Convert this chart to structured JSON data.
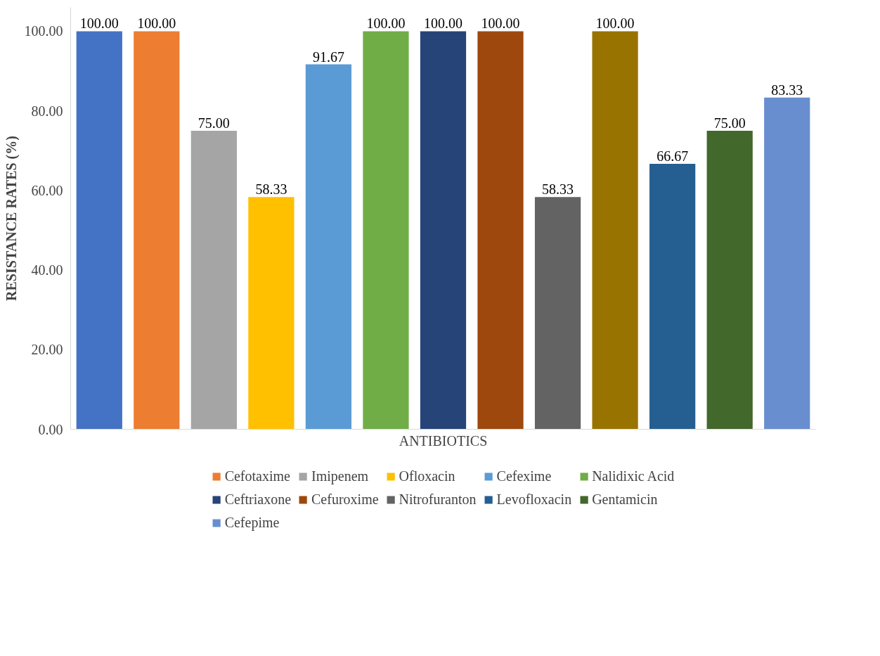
{
  "chart_data": {
    "type": "bar",
    "xlabel": "ANTIBIOTICS",
    "ylabel": "RESISTANCE RATES (%)",
    "categories": [
      null
    ],
    "series": [
      {
        "color": "#4472c4",
        "values": [
          100.0
        ],
        "value_labels": [
          "100.00"
        ]
      },
      {
        "name": "Cefotaxime",
        "color": "#ed7d31",
        "values": [
          100.0
        ],
        "value_labels": [
          "100.00"
        ]
      },
      {
        "name": "Imipenem",
        "color": "#a5a5a5",
        "values": [
          75.0
        ],
        "value_labels": [
          "75.00"
        ]
      },
      {
        "name": "Ofloxacin",
        "color": "#ffc000",
        "values": [
          58.33
        ],
        "value_labels": [
          "58.33"
        ]
      },
      {
        "name": "Cefexime",
        "color": "#5b9bd5",
        "values": [
          91.67
        ],
        "value_labels": [
          "91.67"
        ]
      },
      {
        "name": "Nalidixic Acid",
        "color": "#70ad47",
        "values": [
          100.0
        ],
        "value_labels": [
          "100.00"
        ]
      },
      {
        "name": "Ceftriaxone",
        "color": "#264478",
        "values": [
          100.0
        ],
        "value_labels": [
          "100.00"
        ]
      },
      {
        "name": "Cefuroxime",
        "color": "#9e480e",
        "values": [
          100.0
        ],
        "value_labels": [
          "100.00"
        ]
      },
      {
        "name": "Nitrofuranton",
        "color": "#636363",
        "values": [
          58.33
        ],
        "value_labels": [
          "58.33"
        ]
      },
      {
        "color": "#997300",
        "values": [
          100.0
        ],
        "value_labels": [
          "100.00"
        ]
      },
      {
        "name": "Levofloxacin",
        "color": "#255e91",
        "values": [
          66.67
        ],
        "value_labels": [
          "66.67"
        ]
      },
      {
        "name": "Gentamicin",
        "color": "#43682b",
        "values": [
          75.0
        ],
        "value_labels": [
          "75.00"
        ]
      },
      {
        "name": "Cefepime",
        "color": "#698ed0",
        "values": [
          83.33
        ],
        "value_labels": [
          "83.33"
        ]
      }
    ],
    "ylim": [
      0,
      106
    ],
    "yticks": [
      {
        "value": 0,
        "label": "0.00"
      },
      {
        "value": 20,
        "label": "20.00"
      },
      {
        "value": 40,
        "label": "40.00"
      },
      {
        "value": 60,
        "label": "60.00"
      },
      {
        "value": 80,
        "label": "80.00"
      },
      {
        "value": 100,
        "label": "100.00"
      }
    ],
    "grid": false,
    "legend": "bottom"
  }
}
